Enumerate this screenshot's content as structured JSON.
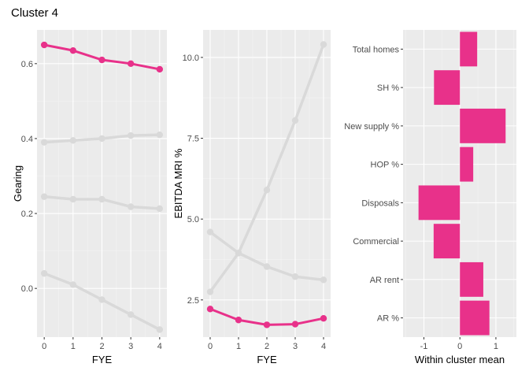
{
  "title": "Cluster 4",
  "colors": {
    "highlight": "#e8318a",
    "other": "#d9d9d9",
    "panel_bg": "#ebebeb",
    "grid_major": "#ffffff",
    "grid_minor": "#f4f4f4"
  },
  "chart_data": [
    {
      "type": "line",
      "xlabel": "FYE",
      "ylabel": "Gearing",
      "x": [
        0,
        1,
        2,
        3,
        4
      ],
      "xticks": [
        "0",
        "1",
        "2",
        "3",
        "4"
      ],
      "yticks": [
        "0.0",
        "0.2",
        "0.4",
        "0.6"
      ],
      "ytick_values": [
        0.0,
        0.2,
        0.4,
        0.6
      ],
      "ylim": [
        -0.13,
        0.69
      ],
      "grid": true,
      "series": [
        {
          "values": [
            0.65,
            0.635,
            0.61,
            0.6,
            0.585
          ],
          "highlight": true
        },
        {
          "values": [
            0.39,
            0.395,
            0.4,
            0.408,
            0.41
          ],
          "highlight": false
        },
        {
          "values": [
            0.245,
            0.238,
            0.238,
            0.218,
            0.213
          ],
          "highlight": false
        },
        {
          "values": [
            0.04,
            0.01,
            -0.03,
            -0.07,
            -0.11
          ],
          "highlight": false
        }
      ]
    },
    {
      "type": "line",
      "xlabel": "FYE",
      "ylabel": "EBITDA MRI %",
      "x": [
        0,
        1,
        2,
        3,
        4
      ],
      "xticks": [
        "0",
        "1",
        "2",
        "3",
        "4"
      ],
      "yticks": [
        "2.5",
        "5.0",
        "7.5",
        "10.0"
      ],
      "ytick_values": [
        2.5,
        5.0,
        7.5,
        10.0
      ],
      "ylim": [
        1.35,
        10.85
      ],
      "grid": true,
      "series": [
        {
          "values": [
            2.22,
            1.88,
            1.73,
            1.75,
            1.93
          ],
          "highlight": true
        },
        {
          "values": [
            2.75,
            3.95,
            5.9,
            8.05,
            10.4
          ],
          "highlight": false
        },
        {
          "values": [
            4.6,
            3.95,
            3.53,
            3.22,
            3.12
          ],
          "highlight": false
        }
      ]
    },
    {
      "type": "bar",
      "orientation": "horizontal",
      "xlabel": "Within cluster mean",
      "ylabel": "",
      "categories": [
        "Total homes",
        "SH %",
        "New supply %",
        "HOP %",
        "Disposals",
        "Commercial",
        "AR rent",
        "AR %"
      ],
      "values": [
        0.48,
        -0.72,
        1.27,
        0.37,
        -1.15,
        -0.73,
        0.65,
        0.82
      ],
      "xticks": [
        "-1",
        "0",
        "1"
      ],
      "xtick_values": [
        -1,
        0,
        1
      ],
      "xlim": [
        -1.58,
        1.57
      ],
      "grid": true
    }
  ]
}
